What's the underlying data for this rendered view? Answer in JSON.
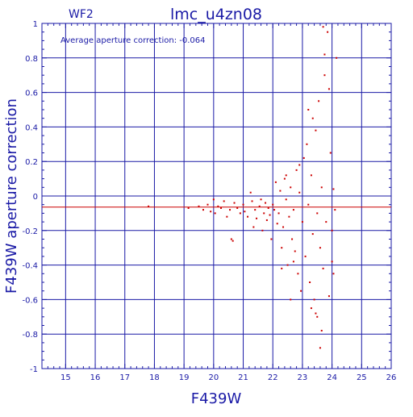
{
  "header": {
    "panel_label": "WF2",
    "title": "lmc_u4zn08",
    "annotation": "Average aperture correction: -0.064"
  },
  "colors": {
    "axis": "#1a1aa6",
    "points": "#cc0000",
    "background": "#ffffff"
  },
  "chart_data": {
    "type": "scatter",
    "title": "lmc_u4zn08",
    "subtitle": "WF2",
    "xlabel": "F439W",
    "ylabel": "F439W aperture correction",
    "xlim": [
      14.2,
      26
    ],
    "ylim": [
      -1,
      1
    ],
    "xticks": [
      15,
      16,
      17,
      18,
      19,
      20,
      21,
      22,
      23,
      24,
      25,
      26
    ],
    "yticks": [
      -1,
      -0.8,
      -0.6,
      -0.4,
      -0.2,
      0,
      0.2,
      0.4,
      0.6,
      0.8,
      1
    ],
    "ytick_labels": [
      "-1",
      "-0.8",
      "-0.6",
      "-0.4",
      "-0.2",
      "0",
      "0.2",
      "0.4",
      "0.6",
      "0.8",
      "1"
    ],
    "grid": true,
    "reference_line": {
      "y": -0.064,
      "label": "Average aperture correction: -0.064"
    },
    "series": [
      {
        "points": [
          [
            17.8,
            -0.06
          ],
          [
            19.15,
            -0.07
          ],
          [
            19.5,
            -0.06
          ],
          [
            19.65,
            -0.08
          ],
          [
            19.8,
            -0.05
          ],
          [
            19.9,
            -0.09
          ],
          [
            20.0,
            -0.02
          ],
          [
            20.05,
            -0.1
          ],
          [
            20.15,
            -0.06
          ],
          [
            20.25,
            -0.07
          ],
          [
            20.35,
            -0.03
          ],
          [
            20.45,
            -0.12
          ],
          [
            20.55,
            -0.08
          ],
          [
            20.6,
            -0.25
          ],
          [
            20.65,
            -0.26
          ],
          [
            20.7,
            -0.04
          ],
          [
            20.8,
            -0.07
          ],
          [
            20.9,
            -0.1
          ],
          [
            21.0,
            -0.05
          ],
          [
            21.05,
            -0.09
          ],
          [
            21.15,
            -0.12
          ],
          [
            21.25,
            0.02
          ],
          [
            21.3,
            -0.03
          ],
          [
            21.35,
            -0.18
          ],
          [
            21.4,
            -0.08
          ],
          [
            21.45,
            -0.13
          ],
          [
            21.55,
            -0.06
          ],
          [
            21.6,
            -0.02
          ],
          [
            21.65,
            -0.2
          ],
          [
            21.7,
            -0.1
          ],
          [
            21.75,
            -0.04
          ],
          [
            21.8,
            -0.14
          ],
          [
            21.85,
            -0.07
          ],
          [
            21.9,
            -0.11
          ],
          [
            21.95,
            -0.25
          ],
          [
            22.0,
            -0.05
          ],
          [
            22.05,
            -0.08
          ],
          [
            22.1,
            0.08
          ],
          [
            22.15,
            -0.16
          ],
          [
            22.2,
            -0.1
          ],
          [
            22.25,
            0.03
          ],
          [
            22.3,
            -0.3
          ],
          [
            22.35,
            -0.18
          ],
          [
            22.4,
            0.1
          ],
          [
            22.45,
            -0.02
          ],
          [
            22.5,
            -0.4
          ],
          [
            22.55,
            -0.12
          ],
          [
            22.6,
            0.05
          ],
          [
            22.65,
            -0.25
          ],
          [
            22.7,
            -0.08
          ],
          [
            22.75,
            -0.32
          ],
          [
            22.8,
            0.15
          ],
          [
            22.85,
            -0.45
          ],
          [
            22.9,
            0.02
          ],
          [
            22.95,
            -0.55
          ],
          [
            23.0,
            -0.15
          ],
          [
            23.05,
            0.22
          ],
          [
            23.1,
            -0.35
          ],
          [
            23.15,
            0.3
          ],
          [
            23.2,
            -0.05
          ],
          [
            23.25,
            -0.5
          ],
          [
            23.3,
            0.12
          ],
          [
            23.35,
            -0.22
          ],
          [
            23.4,
            -0.6
          ],
          [
            23.45,
            0.38
          ],
          [
            23.5,
            -0.1
          ],
          [
            23.55,
            0.55
          ],
          [
            23.6,
            -0.3
          ],
          [
            23.65,
            0.05
          ],
          [
            23.7,
            -0.42
          ],
          [
            23.75,
            0.7
          ],
          [
            23.8,
            -0.15
          ],
          [
            23.85,
            0.95
          ],
          [
            23.9,
            -0.58
          ],
          [
            23.95,
            0.25
          ],
          [
            24.0,
            -0.2
          ],
          [
            24.05,
            0.04
          ],
          [
            24.1,
            -0.08
          ],
          [
            24.15,
            0.8
          ],
          [
            23.6,
            -0.88
          ],
          [
            23.7,
            0.98
          ],
          [
            23.75,
            0.82
          ],
          [
            23.5,
            -0.7
          ],
          [
            23.65,
            -0.78
          ],
          [
            22.7,
            -0.38
          ],
          [
            22.6,
            -0.6
          ],
          [
            22.3,
            -0.42
          ],
          [
            23.35,
            0.45
          ],
          [
            23.45,
            -0.68
          ],
          [
            23.9,
            0.62
          ],
          [
            22.9,
            0.18
          ],
          [
            23.2,
            0.5
          ],
          [
            23.3,
            -0.65
          ],
          [
            24.0,
            -0.38
          ],
          [
            24.05,
            -0.45
          ],
          [
            22.45,
            0.12
          ]
        ]
      }
    ]
  }
}
